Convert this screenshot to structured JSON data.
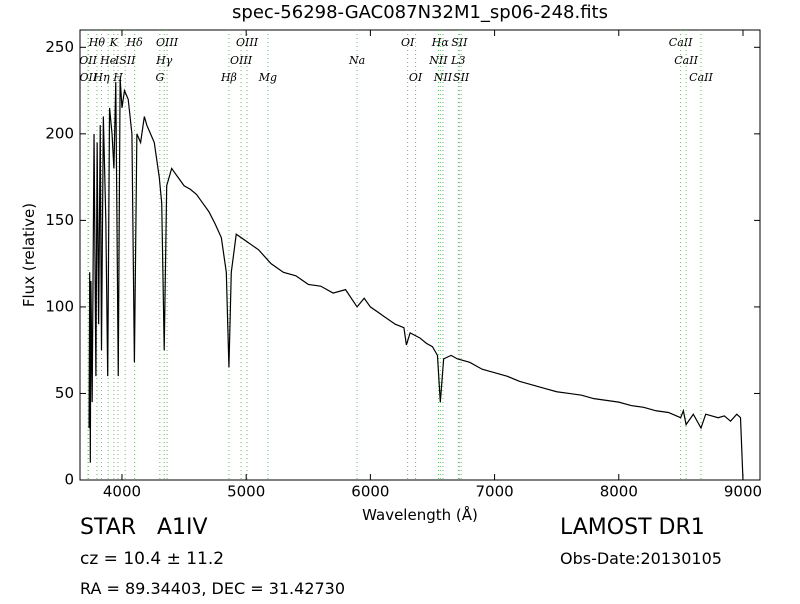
{
  "chart_data": {
    "type": "line",
    "title": "spec-56298-GAC087N32M1_sp06-248.fits",
    "x_label": "Wavelength (Å)",
    "y_label": "Flux (relative)",
    "xlim": [
      3662,
      9137
    ],
    "ylim": [
      0,
      260
    ],
    "xticks": [
      4000,
      5000,
      6000,
      7000,
      8000,
      9000
    ],
    "yticks": [
      0,
      50,
      100,
      150,
      200,
      250
    ],
    "color": "#000000",
    "line_marker_color": "#66bb66",
    "x": [
      3735,
      3740,
      3745,
      3750,
      3760,
      3775,
      3790,
      3800,
      3812,
      3825,
      3835,
      3850,
      3870,
      3885,
      3900,
      3920,
      3935,
      3950,
      3970,
      3985,
      4000,
      4020,
      4050,
      4080,
      4100,
      4120,
      4150,
      4180,
      4200,
      4230,
      4260,
      4300,
      4320,
      4340,
      4360,
      4400,
      4450,
      4500,
      4550,
      4600,
      4650,
      4700,
      4750,
      4800,
      4840,
      4861,
      4880,
      4920,
      5000,
      5100,
      5200,
      5300,
      5400,
      5500,
      5600,
      5700,
      5800,
      5893,
      5950,
      6000,
      6100,
      6200,
      6270,
      6290,
      6320,
      6400,
      6450,
      6500,
      6540,
      6563,
      6590,
      6650,
      6700,
      6800,
      6900,
      7000,
      7100,
      7200,
      7300,
      7400,
      7500,
      7600,
      7700,
      7800,
      7900,
      8000,
      8100,
      8200,
      8300,
      8400,
      8498,
      8520,
      8542,
      8600,
      8662,
      8700,
      8800,
      8850,
      8900,
      8950,
      8980,
      9000
    ],
    "values": [
      30,
      120,
      10,
      115,
      45,
      200,
      60,
      195,
      90,
      205,
      75,
      210,
      150,
      60,
      215,
      200,
      180,
      230,
      60,
      232,
      215,
      225,
      220,
      200,
      68,
      200,
      195,
      210,
      205,
      200,
      195,
      175,
      160,
      75,
      170,
      180,
      175,
      170,
      168,
      165,
      160,
      155,
      148,
      140,
      120,
      65,
      120,
      142,
      138,
      133,
      125,
      120,
      118,
      113,
      112,
      108,
      110,
      100,
      105,
      100,
      95,
      90,
      88,
      78,
      85,
      82,
      79,
      77,
      72,
      45,
      70,
      72,
      70,
      68,
      64,
      62,
      60,
      57,
      55,
      53,
      51,
      50,
      49,
      47,
      46,
      45,
      43,
      42,
      40,
      39,
      36,
      40,
      32,
      38,
      30,
      38,
      36,
      37,
      34,
      38,
      36,
      0
    ],
    "line_labels": {
      "row1": [
        {
          "label": "Hθ",
          "x": 3798
        },
        {
          "label": "K",
          "x": 3934
        },
        {
          "label": "Hδ",
          "x": 4102
        },
        {
          "label": "OIII",
          "x": 4363
        },
        {
          "label": "OIII",
          "x": 5007
        },
        {
          "label": "OI",
          "x": 6300
        },
        {
          "label": "Hα",
          "x": 6563
        },
        {
          "label": "SII",
          "x": 6716
        },
        {
          "label": "CaII",
          "x": 8498
        }
      ],
      "row2": [
        {
          "label": "OII",
          "x": 3727
        },
        {
          "label": "He",
          "x": 3889
        },
        {
          "label": "ISII",
          "x": 4026
        },
        {
          "label": "Hγ",
          "x": 4340
        },
        {
          "label": "OIII",
          "x": 4959
        },
        {
          "label": "Na",
          "x": 5893
        },
        {
          "label": "NII",
          "x": 6548
        },
        {
          "label": "L3",
          "x": 6708
        },
        {
          "label": "CaII",
          "x": 8542
        }
      ],
      "row3": [
        {
          "label": "OII",
          "x": 3729
        },
        {
          "label": "Hη",
          "x": 3835
        },
        {
          "label": "H",
          "x": 3968
        },
        {
          "label": "G",
          "x": 4305
        },
        {
          "label": "Hβ",
          "x": 4861
        },
        {
          "label": "Mg",
          "x": 5175
        },
        {
          "label": "OI",
          "x": 6364
        },
        {
          "label": "NII",
          "x": 6584
        },
        {
          "label": "SII",
          "x": 6731
        },
        {
          "label": "CaII",
          "x": 8662
        }
      ]
    }
  },
  "info": {
    "object": "STAR",
    "subclass": "A1IV",
    "survey": "LAMOST DR1",
    "cz": "cz = 10.4  ± 11.2",
    "obs_date": "Obs-Date:20130105",
    "coords": "RA = 89.34403, DEC = 31.42730"
  }
}
